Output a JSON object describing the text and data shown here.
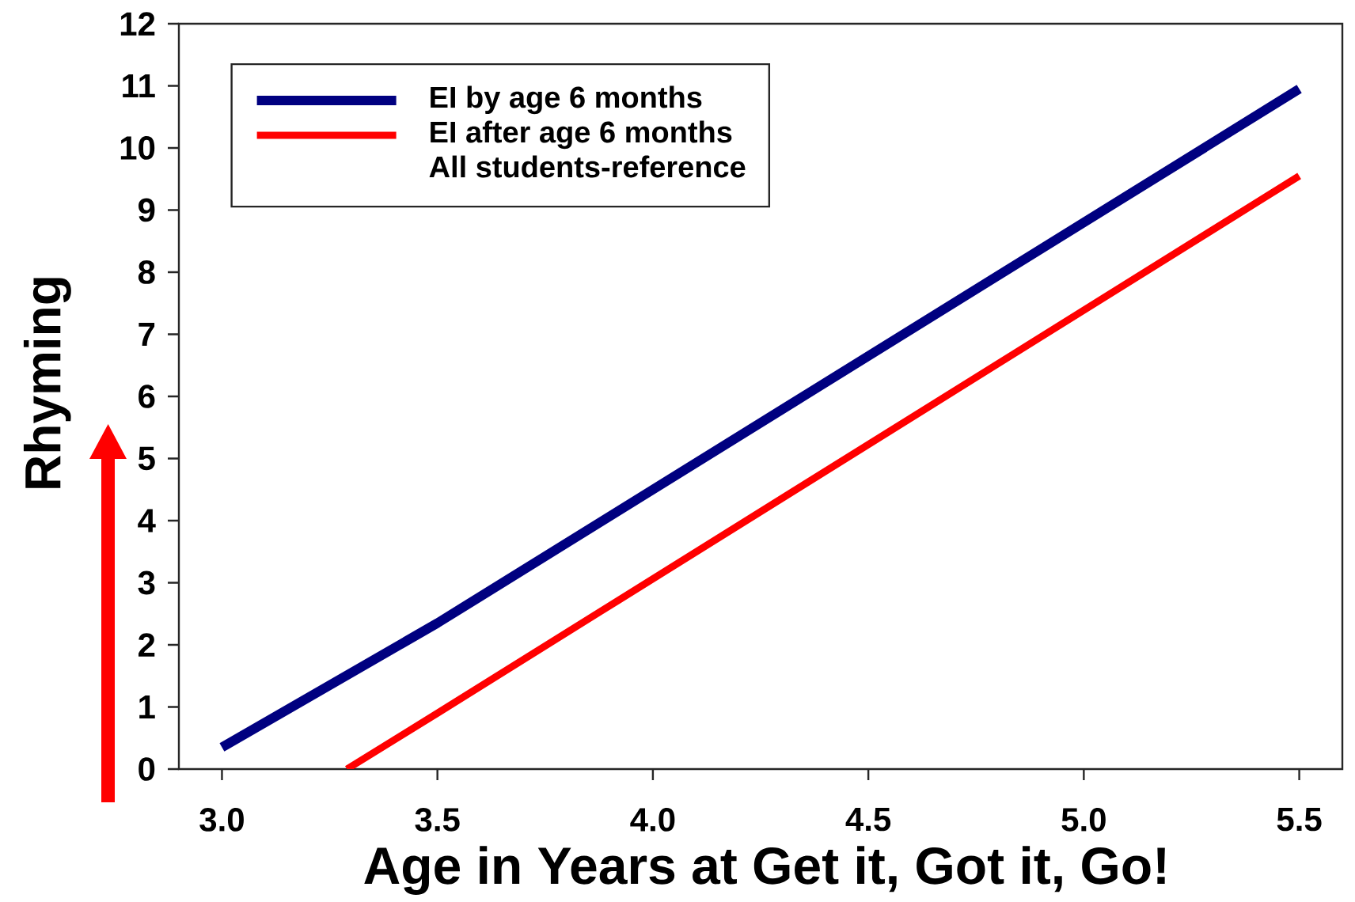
{
  "chart_data": {
    "type": "line",
    "xlabel": "Age in Years at Get it, Got it, Go!",
    "ylabel": "Rhyming",
    "series": [
      {
        "name": "EI by age 6 months",
        "color": "#000080",
        "x": [
          3.0,
          3.5,
          5.5
        ],
        "values": [
          0.35,
          2.35,
          10.95
        ]
      },
      {
        "name": "EI after age 6 months",
        "color": "#ff0000",
        "x": [
          3.29,
          3.5,
          5.5
        ],
        "values": [
          0,
          0.9,
          9.55
        ]
      }
    ],
    "annotations": [
      "All students-reference"
    ],
    "xlim": [
      2.9,
      5.6
    ],
    "ylim": [
      0,
      12
    ],
    "xticks": [
      {
        "value": 3,
        "label": "3.0"
      },
      3.5,
      {
        "value": 4,
        "label": "4.0"
      },
      4.5,
      {
        "value": 5,
        "label": "5.0"
      },
      5.5
    ],
    "yticks": [
      0,
      1,
      2,
      3,
      4,
      5,
      6,
      7,
      8,
      9,
      10,
      11,
      12
    ],
    "legend": "top left",
    "grid": false,
    "marker": "none",
    "line_style": "solid"
  }
}
